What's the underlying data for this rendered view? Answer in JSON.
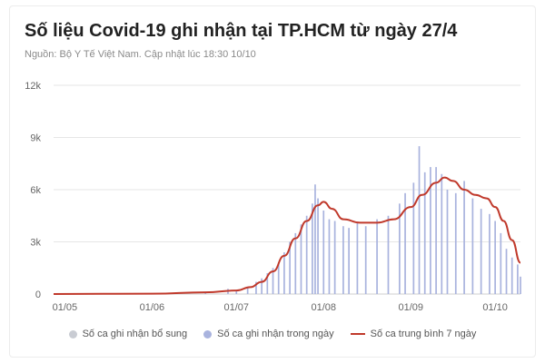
{
  "title": "Số liệu Covid-19 ghi nhận tại TP.HCM từ ngày 27/4",
  "subtitle": "Nguồn: Bộ Y Tế Việt Nam. Cập nhật lúc 18:30 10/10",
  "colors": {
    "supplement": "#c9ccd3",
    "daily": "#a9b3de",
    "average": "#c0392b",
    "grid": "#e6e6e6"
  },
  "chart_data": {
    "type": "bar",
    "x_unit": "date (2021)",
    "ylim": [
      0,
      12000
    ],
    "y_ticks": [
      0,
      3000,
      6000,
      9000,
      12000
    ],
    "y_tick_labels": [
      "0",
      "3k",
      "6k",
      "9k",
      "12k"
    ],
    "x_ticks": [
      {
        "date": "2021-05-01",
        "label": "01/05"
      },
      {
        "date": "2021-06-01",
        "label": "01/06"
      },
      {
        "date": "2021-07-01",
        "label": "01/07"
      },
      {
        "date": "2021-08-01",
        "label": "01/08"
      },
      {
        "date": "2021-09-01",
        "label": "01/09"
      },
      {
        "date": "2021-10-01",
        "label": "01/10"
      }
    ],
    "x_range": [
      "2021-04-27",
      "2021-10-10"
    ],
    "grid": true,
    "legend_position": "bottom",
    "series": [
      {
        "name": "Số ca ghi nhận bổ sung",
        "type": "bar",
        "points": []
      },
      {
        "name": "Số ca ghi nhận trong ngày",
        "type": "bar",
        "points": [
          [
            "2021-06-01",
            20
          ],
          [
            "2021-06-10",
            40
          ],
          [
            "2021-06-20",
            70
          ],
          [
            "2021-06-28",
            300
          ],
          [
            "2021-07-01",
            200
          ],
          [
            "2021-07-05",
            400
          ],
          [
            "2021-07-08",
            700
          ],
          [
            "2021-07-10",
            900
          ],
          [
            "2021-07-12",
            1200
          ],
          [
            "2021-07-14",
            1500
          ],
          [
            "2021-07-16",
            1800
          ],
          [
            "2021-07-18",
            2400
          ],
          [
            "2021-07-20",
            3000
          ],
          [
            "2021-07-22",
            3500
          ],
          [
            "2021-07-24",
            4000
          ],
          [
            "2021-07-26",
            4500
          ],
          [
            "2021-07-28",
            5200
          ],
          [
            "2021-07-29",
            6300
          ],
          [
            "2021-07-30",
            5500
          ],
          [
            "2021-08-01",
            4800
          ],
          [
            "2021-08-03",
            4300
          ],
          [
            "2021-08-05",
            4200
          ],
          [
            "2021-08-08",
            3900
          ],
          [
            "2021-08-10",
            3800
          ],
          [
            "2021-08-13",
            4100
          ],
          [
            "2021-08-16",
            3900
          ],
          [
            "2021-08-20",
            4300
          ],
          [
            "2021-08-24",
            4500
          ],
          [
            "2021-08-28",
            5200
          ],
          [
            "2021-08-30",
            5800
          ],
          [
            "2021-09-02",
            6400
          ],
          [
            "2021-09-04",
            8500
          ],
          [
            "2021-09-06",
            7000
          ],
          [
            "2021-09-08",
            7300
          ],
          [
            "2021-09-10",
            7300
          ],
          [
            "2021-09-12",
            6900
          ],
          [
            "2021-09-14",
            6000
          ],
          [
            "2021-09-17",
            5800
          ],
          [
            "2021-09-20",
            6500
          ],
          [
            "2021-09-23",
            5500
          ],
          [
            "2021-09-26",
            4900
          ],
          [
            "2021-09-29",
            4600
          ],
          [
            "2021-10-01",
            4200
          ],
          [
            "2021-10-03",
            3500
          ],
          [
            "2021-10-05",
            2600
          ],
          [
            "2021-10-07",
            2100
          ],
          [
            "2021-10-09",
            1700
          ],
          [
            "2021-10-10",
            1000
          ]
        ]
      },
      {
        "name": "Số ca trung bình 7 ngày",
        "type": "line",
        "points": [
          [
            "2021-04-27",
            0
          ],
          [
            "2021-06-01",
            20
          ],
          [
            "2021-06-20",
            100
          ],
          [
            "2021-07-01",
            200
          ],
          [
            "2021-07-06",
            400
          ],
          [
            "2021-07-10",
            700
          ],
          [
            "2021-07-14",
            1300
          ],
          [
            "2021-07-18",
            2200
          ],
          [
            "2021-07-22",
            3200
          ],
          [
            "2021-07-26",
            4200
          ],
          [
            "2021-07-30",
            5100
          ],
          [
            "2021-08-01",
            5300
          ],
          [
            "2021-08-04",
            4900
          ],
          [
            "2021-08-08",
            4300
          ],
          [
            "2021-08-14",
            4100
          ],
          [
            "2021-08-20",
            4100
          ],
          [
            "2021-08-26",
            4300
          ],
          [
            "2021-09-01",
            5000
          ],
          [
            "2021-09-05",
            5700
          ],
          [
            "2021-09-10",
            6400
          ],
          [
            "2021-09-13",
            6700
          ],
          [
            "2021-09-16",
            6500
          ],
          [
            "2021-09-20",
            6000
          ],
          [
            "2021-09-24",
            5700
          ],
          [
            "2021-09-28",
            5500
          ],
          [
            "2021-10-01",
            5000
          ],
          [
            "2021-10-04",
            4200
          ],
          [
            "2021-10-07",
            3100
          ],
          [
            "2021-10-10",
            1800
          ]
        ]
      }
    ]
  }
}
